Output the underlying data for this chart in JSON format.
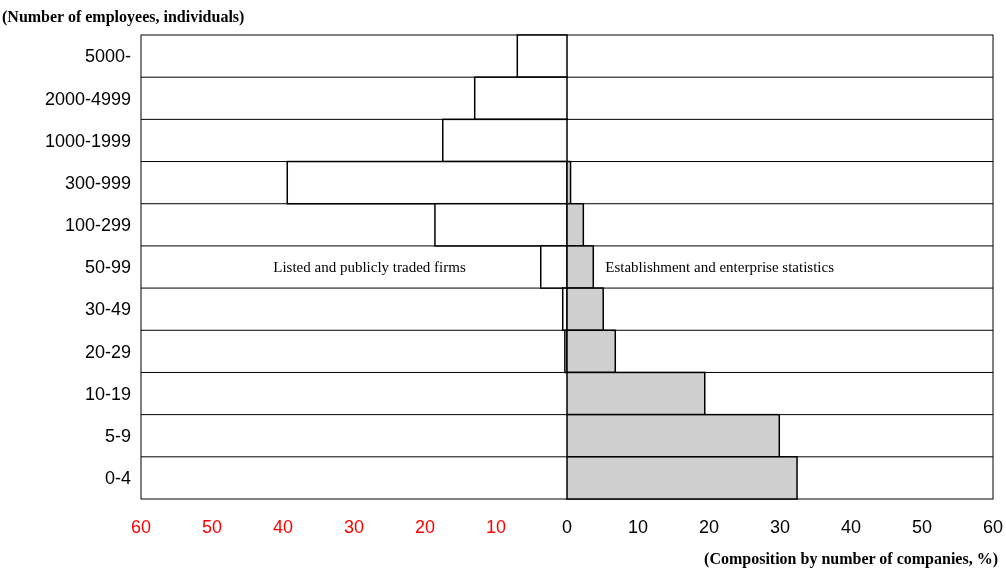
{
  "chart_data": {
    "type": "bar",
    "orientation": "horizontal",
    "xlabel": "(Composition by number of companies, %)",
    "ylabel": "(Number of employees, individuals)",
    "categories": [
      "5000-",
      "2000-4999",
      "1000-1999",
      "300-999",
      "100-299",
      "50-99",
      "30-49",
      "20-29",
      "10-19",
      "5-9",
      "0-4"
    ],
    "series": [
      {
        "name": "Listed and publicly traded firms",
        "color": "#ffffff",
        "values": [
          -7.0,
          -13.0,
          -17.5,
          -39.4,
          -18.6,
          -3.7,
          -0.6,
          -0.3,
          null,
          null,
          null
        ]
      },
      {
        "name": "Establishment and enterprise statistics",
        "color": "#cfcfcf",
        "values": [
          null,
          null,
          null,
          0.5,
          2.3,
          3.7,
          5.1,
          6.8,
          19.4,
          29.9,
          32.4
        ]
      }
    ],
    "xlim": [
      -60,
      60
    ],
    "xticks": [
      {
        "value": -60,
        "label": "60"
      },
      {
        "value": -50,
        "label": "50"
      },
      {
        "value": -40,
        "label": "40"
      },
      {
        "value": -30,
        "label": "30"
      },
      {
        "value": -20,
        "label": "20"
      },
      {
        "value": -10,
        "label": "10"
      },
      0,
      10,
      20,
      30,
      40,
      50,
      60
    ]
  }
}
